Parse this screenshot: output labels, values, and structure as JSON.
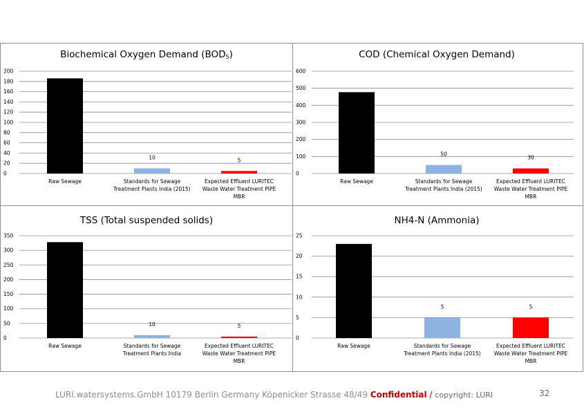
{
  "chart_data": [
    {
      "type": "bar",
      "title": "Biochemical Oxygen Demand (BOD",
      "title_sub": "5",
      "title_end": ")",
      "categories": [
        [
          "Raw Sewage"
        ],
        [
          "Standards for Sewage",
          "Treatment Plants India (2015)"
        ],
        [
          "Expected Effluent LURITEC",
          "Waste Water Treatment PIPE",
          "MBR"
        ]
      ],
      "values": [
        186,
        10,
        5
      ],
      "data_labels": [
        "",
        "10",
        "5"
      ],
      "colors": [
        "#000000",
        "#8db3e2",
        "#ff0000"
      ],
      "ylim": [
        0,
        200
      ],
      "yticks": [
        0,
        20,
        40,
        60,
        80,
        100,
        120,
        140,
        160,
        180,
        200
      ],
      "grid": true
    },
    {
      "type": "bar",
      "title": "COD (Chemical Oxygen Demand)",
      "categories": [
        [
          "Raw Sewage"
        ],
        [
          "Standards for Sewage",
          "Treatment Plants India (2015)"
        ],
        [
          "Expected Effluent LURITEC",
          "Waste Water Treatment PIPE",
          "MBR"
        ]
      ],
      "values": [
        477,
        50,
        30
      ],
      "data_labels": [
        "",
        "50",
        "30"
      ],
      "colors": [
        "#000000",
        "#8db3e2",
        "#ff0000"
      ],
      "ylim": [
        0,
        600
      ],
      "yticks": [
        0,
        100,
        200,
        300,
        400,
        500,
        600
      ],
      "grid": true
    },
    {
      "type": "bar",
      "title": "TSS (Total suspended solids)",
      "categories": [
        [
          "Raw Sewage"
        ],
        [
          "Standards for Sewage",
          "Treatment Plants India"
        ],
        [
          "Expected Effluent LURITEC",
          "Waste Water Treatment PIPE",
          "MBR"
        ]
      ],
      "values": [
        328,
        10,
        5
      ],
      "data_labels": [
        "",
        "10",
        "5"
      ],
      "colors": [
        "#000000",
        "#8db3e2",
        "#ff0000"
      ],
      "ylim": [
        0,
        350
      ],
      "yticks": [
        0,
        50,
        100,
        150,
        200,
        250,
        300,
        350
      ],
      "grid": true
    },
    {
      "type": "bar",
      "title": "NH4-N (Ammonia)",
      "categories": [
        [
          "Raw Sewage"
        ],
        [
          "Standards for Sewage",
          "Treatment Plants India (2015)"
        ],
        [
          "Expected Effluent LURITEC",
          "Waste Water Treatment PIPE",
          "MBR"
        ]
      ],
      "values": [
        23,
        5,
        5
      ],
      "data_labels": [
        "",
        "5",
        "5"
      ],
      "colors": [
        "#000000",
        "#8db3e2",
        "#ff0000"
      ],
      "ylim": [
        0,
        25
      ],
      "yticks": [
        0,
        5,
        10,
        15,
        20,
        25
      ],
      "grid": true
    }
  ],
  "footer": {
    "company": "LURI.watersystems.GmbH 10179 Berlin Germany Köpenicker Strasse 48/49",
    "confidential": "Confidential",
    "separator": "/",
    "copyright": "copyright: LURI"
  },
  "page_number": "32"
}
